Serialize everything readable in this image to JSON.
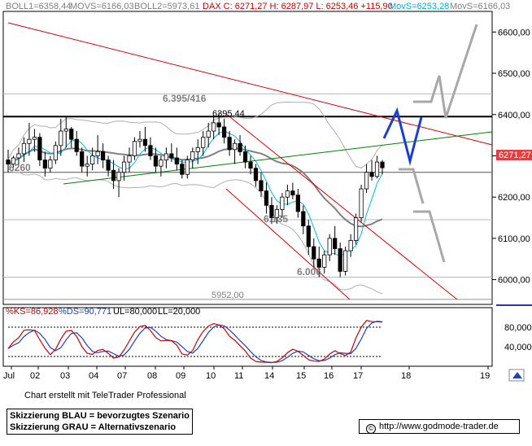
{
  "header": {
    "boll1": "BOLL1=6358,44",
    "movs": "MOVS=6166,03",
    "boll2": "BOLL2=5973,61",
    "dax": "DAX C: 6271,27 H: 6287,97 L: 6253,46 +115,90",
    "movs_blue": "MovS=6253,28",
    "movs_black": "MovS=6166,03"
  },
  "price_axis": {
    "ticks": [
      "6600,00",
      "6500,00",
      "6400,00",
      "6300,00",
      "6200,00",
      "6100,00",
      "6000,00"
    ],
    "current_price": "6271,27"
  },
  "annotations": {
    "level_6395_416": "6.395/416",
    "level_6395_44": "6395,44",
    "level_6260": "6260",
    "level_6135": "6.135",
    "level_6006": "6.006",
    "level_5952": "5952,00"
  },
  "oscillator": {
    "ks": "%KS=86,928",
    "ds": "%DS=90,771",
    "ul": "UL=80,000",
    "ll": "LL=20,000",
    "ticks": [
      "80,000",
      "40,000"
    ]
  },
  "x_axis": {
    "labels": [
      "Jul",
      "02",
      "03",
      "04",
      "07",
      "08",
      "09",
      "10",
      "11",
      "14",
      "15",
      "16",
      "17",
      "18",
      "19"
    ]
  },
  "footer": {
    "credit": "Chart erstellt mit TeleTrader Professional",
    "legend_blue": "Skizzierung BLAU = bevorzugtes Szenario",
    "legend_gray": "Skizzierung GRAU = Alternativszenario",
    "url": "http://www.godmode-trader.de"
  },
  "colors": {
    "candle": "#000000",
    "blue_scenario": "#1a3fd0",
    "gray_scenario": "#a8a8a8",
    "trend_red": "#e00000",
    "trend_green": "#008000",
    "current_price_bg": "#e04040"
  },
  "chart_data": {
    "type": "candlestick",
    "ylim": [
      5940,
      6650
    ],
    "oscillator_ylim": [
      0,
      100
    ],
    "candles": [
      [
        6290,
        6315,
        6260,
        6280
      ],
      [
        6280,
        6300,
        6265,
        6295
      ],
      [
        6295,
        6320,
        6275,
        6305
      ],
      [
        6305,
        6345,
        6285,
        6330
      ],
      [
        6330,
        6380,
        6300,
        6340
      ],
      [
        6340,
        6365,
        6310,
        6345
      ],
      [
        6345,
        6355,
        6275,
        6290
      ],
      [
        6290,
        6310,
        6250,
        6270
      ],
      [
        6270,
        6300,
        6260,
        6290
      ],
      [
        6290,
        6335,
        6280,
        6325
      ],
      [
        6325,
        6390,
        6300,
        6360
      ],
      [
        6360,
        6395,
        6320,
        6365
      ],
      [
        6365,
        6370,
        6320,
        6340
      ],
      [
        6340,
        6360,
        6300,
        6310
      ],
      [
        6310,
        6320,
        6260,
        6275
      ],
      [
        6275,
        6300,
        6250,
        6280
      ],
      [
        6280,
        6320,
        6265,
        6300
      ],
      [
        6300,
        6350,
        6280,
        6310
      ],
      [
        6310,
        6330,
        6270,
        6290
      ],
      [
        6290,
        6300,
        6250,
        6265
      ],
      [
        6265,
        6290,
        6220,
        6240
      ],
      [
        6240,
        6270,
        6200,
        6260
      ],
      [
        6260,
        6300,
        6240,
        6285
      ],
      [
        6285,
        6320,
        6260,
        6300
      ],
      [
        6300,
        6345,
        6290,
        6335
      ],
      [
        6335,
        6360,
        6320,
        6340
      ],
      [
        6340,
        6370,
        6310,
        6325
      ],
      [
        6325,
        6345,
        6290,
        6300
      ],
      [
        6300,
        6320,
        6260,
        6275
      ],
      [
        6275,
        6300,
        6250,
        6290
      ],
      [
        6290,
        6320,
        6270,
        6305
      ],
      [
        6305,
        6330,
        6285,
        6295
      ],
      [
        6295,
        6320,
        6265,
        6280
      ],
      [
        6280,
        6290,
        6245,
        6255
      ],
      [
        6255,
        6300,
        6245,
        6290
      ],
      [
        6290,
        6320,
        6270,
        6310
      ],
      [
        6310,
        6340,
        6280,
        6320
      ],
      [
        6320,
        6360,
        6300,
        6345
      ],
      [
        6345,
        6380,
        6320,
        6360
      ],
      [
        6360,
        6395,
        6340,
        6380
      ],
      [
        6380,
        6405,
        6350,
        6370
      ],
      [
        6370,
        6390,
        6330,
        6345
      ],
      [
        6345,
        6360,
        6300,
        6315
      ],
      [
        6315,
        6340,
        6280,
        6330
      ],
      [
        6330,
        6350,
        6300,
        6310
      ],
      [
        6310,
        6325,
        6270,
        6285
      ],
      [
        6285,
        6300,
        6255,
        6270
      ],
      [
        6270,
        6280,
        6225,
        6240
      ],
      [
        6240,
        6260,
        6200,
        6215
      ],
      [
        6215,
        6235,
        6160,
        6180
      ],
      [
        6180,
        6200,
        6135,
        6150
      ],
      [
        6150,
        6180,
        6135,
        6170
      ],
      [
        6170,
        6210,
        6150,
        6200
      ],
      [
        6200,
        6230,
        6180,
        6215
      ],
      [
        6215,
        6235,
        6195,
        6205
      ],
      [
        6205,
        6220,
        6150,
        6165
      ],
      [
        6165,
        6180,
        6110,
        6130
      ],
      [
        6130,
        6145,
        6060,
        6080
      ],
      [
        6080,
        6100,
        6030,
        6050
      ],
      [
        6050,
        6080,
        6006,
        6030
      ],
      [
        6030,
        6070,
        6015,
        6060
      ],
      [
        6060,
        6110,
        6045,
        6100
      ],
      [
        6100,
        6130,
        6060,
        6075
      ],
      [
        6075,
        6090,
        6006,
        6020
      ],
      [
        6020,
        6080,
        6010,
        6070
      ],
      [
        6070,
        6110,
        6055,
        6095
      ],
      [
        6095,
        6160,
        6085,
        6150
      ],
      [
        6150,
        6230,
        6140,
        6220
      ],
      [
        6220,
        6280,
        6210,
        6260
      ],
      [
        6260,
        6290,
        6240,
        6250
      ],
      [
        6250,
        6300,
        6245,
        6285
      ],
      [
        6285,
        6290,
        6255,
        6271
      ]
    ]
  }
}
